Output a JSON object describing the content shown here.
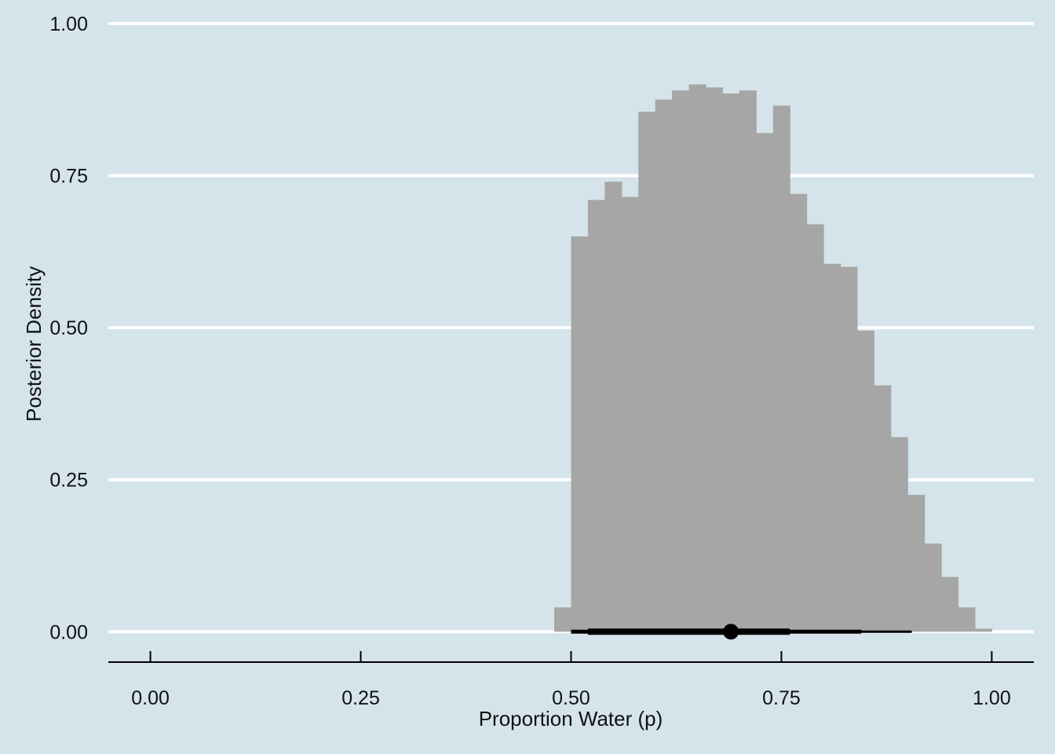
{
  "chart_data": {
    "type": "bar",
    "xlabel": "Proportion Water (p)",
    "ylabel": "Posterior Density",
    "xlim": [
      -0.05,
      1.05
    ],
    "ylim": [
      -0.05,
      1.0
    ],
    "x_ticks": [
      "0.00",
      "0.25",
      "0.50",
      "0.75",
      "1.00"
    ],
    "y_ticks": [
      "0.00",
      "0.25",
      "0.50",
      "0.75",
      "1.00"
    ],
    "grid": "horizontal",
    "bin_width": 0.02,
    "bins": [
      {
        "x0": 0.48,
        "y": 0.04
      },
      {
        "x0": 0.5,
        "y": 0.65
      },
      {
        "x0": 0.52,
        "y": 0.71
      },
      {
        "x0": 0.54,
        "y": 0.74
      },
      {
        "x0": 0.56,
        "y": 0.715
      },
      {
        "x0": 0.58,
        "y": 0.855
      },
      {
        "x0": 0.6,
        "y": 0.875
      },
      {
        "x0": 0.62,
        "y": 0.89
      },
      {
        "x0": 0.64,
        "y": 0.9
      },
      {
        "x0": 0.66,
        "y": 0.895
      },
      {
        "x0": 0.68,
        "y": 0.885
      },
      {
        "x0": 0.7,
        "y": 0.89
      },
      {
        "x0": 0.72,
        "y": 0.82
      },
      {
        "x0": 0.74,
        "y": 0.865
      },
      {
        "x0": 0.76,
        "y": 0.72
      },
      {
        "x0": 0.78,
        "y": 0.67
      },
      {
        "x0": 0.8,
        "y": 0.605
      },
      {
        "x0": 0.82,
        "y": 0.6
      },
      {
        "x0": 0.84,
        "y": 0.495
      },
      {
        "x0": 0.86,
        "y": 0.405
      },
      {
        "x0": 0.88,
        "y": 0.32
      },
      {
        "x0": 0.9,
        "y": 0.225
      },
      {
        "x0": 0.92,
        "y": 0.145
      },
      {
        "x0": 0.94,
        "y": 0.09
      },
      {
        "x0": 0.96,
        "y": 0.04
      },
      {
        "x0": 0.98,
        "y": 0.005
      }
    ],
    "point_estimate": 0.69,
    "interval_inner": [
      0.52,
      0.76
    ],
    "interval_mid": [
      0.5,
      0.845
    ],
    "interval_outer": [
      0.5,
      0.905
    ],
    "colors": {
      "background": "#d5e4eb",
      "bars": "#a6a6a6",
      "grid": "#ffffff",
      "interval": "#000000",
      "axis": "#000000"
    }
  }
}
